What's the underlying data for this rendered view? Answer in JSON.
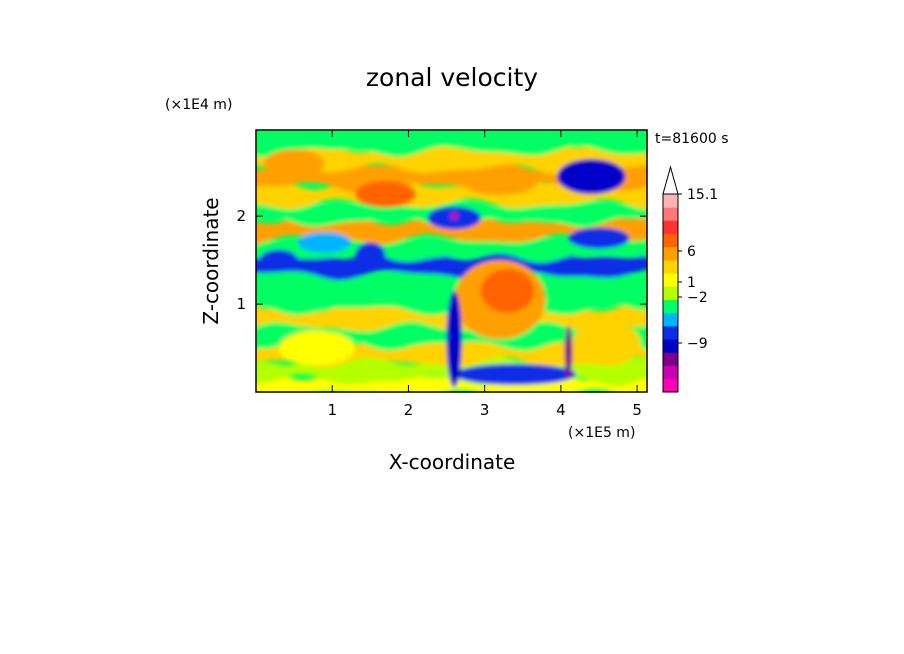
{
  "chart_data": {
    "type": "heatmap",
    "title": "zonal velocity",
    "xlabel": "X-coordinate",
    "ylabel": "Z-coordinate",
    "x_unit": "(×1E5 m)",
    "y_unit": "(×1E4 m)",
    "time_label": "t=81600 s",
    "xlim": [
      0,
      5.13
    ],
    "ylim": [
      0,
      2.98
    ],
    "x_ticks": [
      "1",
      "2",
      "3",
      "4",
      "5"
    ],
    "y_ticks": [
      "1",
      "2"
    ],
    "colorbar": {
      "labels": [
        "15.1",
        "6",
        "1",
        "−2",
        "−9"
      ],
      "colors": [
        "#ff00b4",
        "#c800b4",
        "#7d008c",
        "#0000c8",
        "#0a2de6",
        "#00b4ff",
        "#00ff64",
        "#b4ff00",
        "#ffff00",
        "#ffd200",
        "#ffa000",
        "#ff6400",
        "#ff3232",
        "#ff7878",
        "#ffb4b4"
      ]
    },
    "bands": [
      {
        "z": 0.08,
        "color": "#ffff00"
      },
      {
        "z": 0.25,
        "color": "#b4ff00"
      },
      {
        "z": 0.45,
        "color": "#ffd200"
      },
      {
        "z": 0.65,
        "color": "#00ff64"
      },
      {
        "z": 0.85,
        "color": "#ffd200"
      },
      {
        "z": 1.05,
        "color": "#00ff64"
      },
      {
        "z": 1.25,
        "color": "#00ff64"
      },
      {
        "z": 1.45,
        "color": "#0a2de6"
      },
      {
        "z": 1.65,
        "color": "#00ff64"
      },
      {
        "z": 1.85,
        "color": "#ffa000"
      },
      {
        "z": 2.05,
        "color": "#00ff64"
      },
      {
        "z": 2.25,
        "color": "#ffd200"
      },
      {
        "z": 2.45,
        "color": "#ffa000"
      },
      {
        "z": 2.65,
        "color": "#ffd200"
      },
      {
        "z": 2.85,
        "color": "#00ff64"
      }
    ],
    "features": [
      {
        "x": 0.3,
        "z": 1.5,
        "rx": 0.25,
        "rz": 0.12,
        "color": "#0a2de6"
      },
      {
        "x": 1.5,
        "z": 1.55,
        "rx": 0.2,
        "rz": 0.15,
        "color": "#0a2de6"
      },
      {
        "x": 0.9,
        "z": 1.7,
        "rx": 0.35,
        "rz": 0.12,
        "color": "#00b4ff"
      },
      {
        "x": 2.6,
        "z": 1.98,
        "rx": 0.35,
        "rz": 0.13,
        "color": "#0a2de6"
      },
      {
        "x": 4.4,
        "z": 2.45,
        "rx": 0.45,
        "rz": 0.2,
        "color": "#0000c8"
      },
      {
        "x": 3.2,
        "z": 2.4,
        "rx": 0.5,
        "rz": 0.16,
        "color": "#ffa000"
      },
      {
        "x": 1.7,
        "z": 2.25,
        "rx": 0.4,
        "rz": 0.15,
        "color": "#ff6400"
      },
      {
        "x": 3.2,
        "z": 1.05,
        "rx": 0.6,
        "rz": 0.45,
        "color": "#ffa000"
      },
      {
        "x": 3.3,
        "z": 1.15,
        "rx": 0.35,
        "rz": 0.25,
        "color": "#ff6400"
      },
      {
        "x": 3.4,
        "z": 0.2,
        "rx": 0.8,
        "rz": 0.12,
        "color": "#0a2de6"
      },
      {
        "x": 4.6,
        "z": 0.55,
        "rx": 0.45,
        "rz": 0.25,
        "color": "#ffd200"
      },
      {
        "x": 0.8,
        "z": 0.5,
        "rx": 0.5,
        "rz": 0.2,
        "color": "#ffff00"
      },
      {
        "x": 4.5,
        "z": 1.75,
        "rx": 0.4,
        "rz": 0.12,
        "color": "#0a2de6"
      },
      {
        "x": 0.5,
        "z": 2.6,
        "rx": 0.4,
        "rz": 0.16,
        "color": "#ffa000"
      },
      {
        "x": 2.6,
        "z": 0.6,
        "rx": 0.1,
        "rz": 0.55,
        "color": "#0000c8"
      },
      {
        "x": 4.1,
        "z": 0.45,
        "rx": 0.05,
        "rz": 0.3,
        "color": "#7d008c"
      },
      {
        "x": 2.6,
        "z": 2.0,
        "rx": 0.05,
        "rz": 0.04,
        "color": "#c800b4"
      }
    ]
  }
}
